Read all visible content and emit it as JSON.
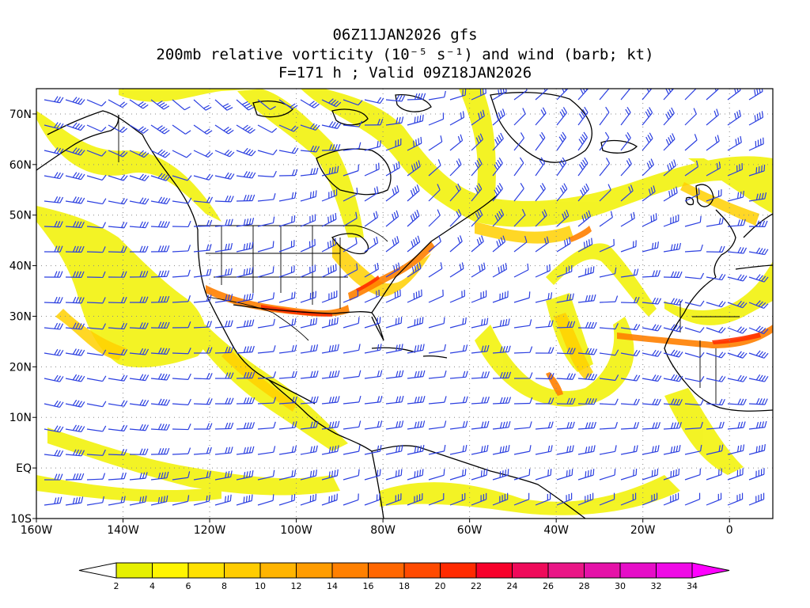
{
  "title": {
    "line1": "06Z11JAN2026 gfs",
    "line2": "200mb relative vorticity (10⁻⁵ s⁻¹) and wind (barb; kt)",
    "line3": "F=171 h ; Valid 09Z18JAN2026"
  },
  "map": {
    "lon_range": [
      -160,
      10
    ],
    "lat_range": [
      -10,
      75
    ],
    "lon_ticks": [
      -160,
      -140,
      -120,
      -100,
      -80,
      -60,
      -40,
      -20,
      0
    ],
    "lon_tick_labels": [
      "160W",
      "140W",
      "120W",
      "100W",
      "80W",
      "60W",
      "40W",
      "20W",
      "0"
    ],
    "lat_ticks": [
      70,
      60,
      50,
      40,
      30,
      20,
      10,
      0,
      -10
    ],
    "lat_tick_labels": [
      "70N",
      "60N",
      "50N",
      "40N",
      "30N",
      "20N",
      "10N",
      "EQ",
      "10S"
    ],
    "barb_color": "#2b3fe0",
    "coast_color": "#000000"
  },
  "colorbar": {
    "levels": [
      2,
      4,
      6,
      8,
      10,
      12,
      14,
      16,
      18,
      20,
      22,
      24,
      26,
      28,
      30,
      32,
      34
    ],
    "labels": [
      "2",
      "4",
      "6",
      "8",
      "10",
      "12",
      "14",
      "16",
      "18",
      "20",
      "22",
      "24",
      "26",
      "28",
      "30",
      "32",
      "34"
    ],
    "colors": [
      "#e6f000",
      "#fff500",
      "#ffe100",
      "#ffcc00",
      "#ffb400",
      "#ff9c00",
      "#ff8000",
      "#ff6600",
      "#ff4a00",
      "#ff2a00",
      "#f7002a",
      "#ef0a5a",
      "#ea1686",
      "#e512a8",
      "#e60ec8",
      "#ef0ae6"
    ],
    "under_color": "#ffffff",
    "over_color": "#ff00ff"
  }
}
